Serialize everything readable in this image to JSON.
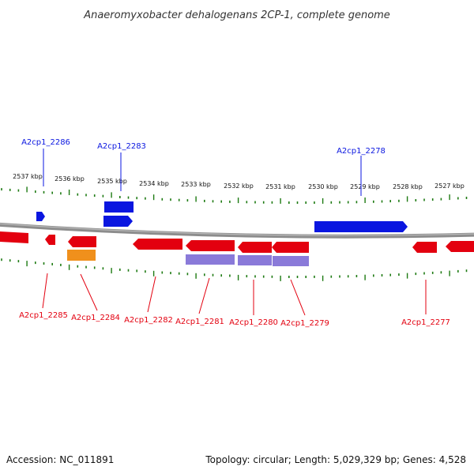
{
  "title": "Anaeromyxobacter dehalogenans 2CP-1, complete genome",
  "footer": {
    "accession": "Accession: NC_011891",
    "summary": "Topology: circular; Length: 5,029,329 bp; Genes: 4,528"
  },
  "colors": {
    "forward": "#0a16e0",
    "reverse": "#e3000f",
    "rna": "#f0901c",
    "protein": "#8a7ad9",
    "tick": "#1d7a12",
    "backbone": "#8c8c8c",
    "title": "#333333"
  },
  "scale_labels": [
    "2537 kbp",
    "2536 kbp",
    "2535 kbp",
    "2534 kbp",
    "2533 kbp",
    "2532 kbp",
    "2531 kbp",
    "2530 kbp",
    "2529 kbp",
    "2528 kbp",
    "2527 kbp"
  ],
  "gene_labels": [
    {
      "name": "A2cp1_2286",
      "strand": "forward"
    },
    {
      "name": "A2cp1_2283",
      "strand": "forward"
    },
    {
      "name": "A2cp1_2278",
      "strand": "forward"
    },
    {
      "name": "A2cp1_2285",
      "strand": "reverse"
    },
    {
      "name": "A2cp1_2284",
      "strand": "reverse"
    },
    {
      "name": "A2cp1_2282",
      "strand": "reverse"
    },
    {
      "name": "A2cp1_2281",
      "strand": "reverse"
    },
    {
      "name": "A2cp1_2280",
      "strand": "reverse"
    },
    {
      "name": "A2cp1_2279",
      "strand": "reverse"
    },
    {
      "name": "A2cp1_2277",
      "strand": "reverse"
    }
  ]
}
